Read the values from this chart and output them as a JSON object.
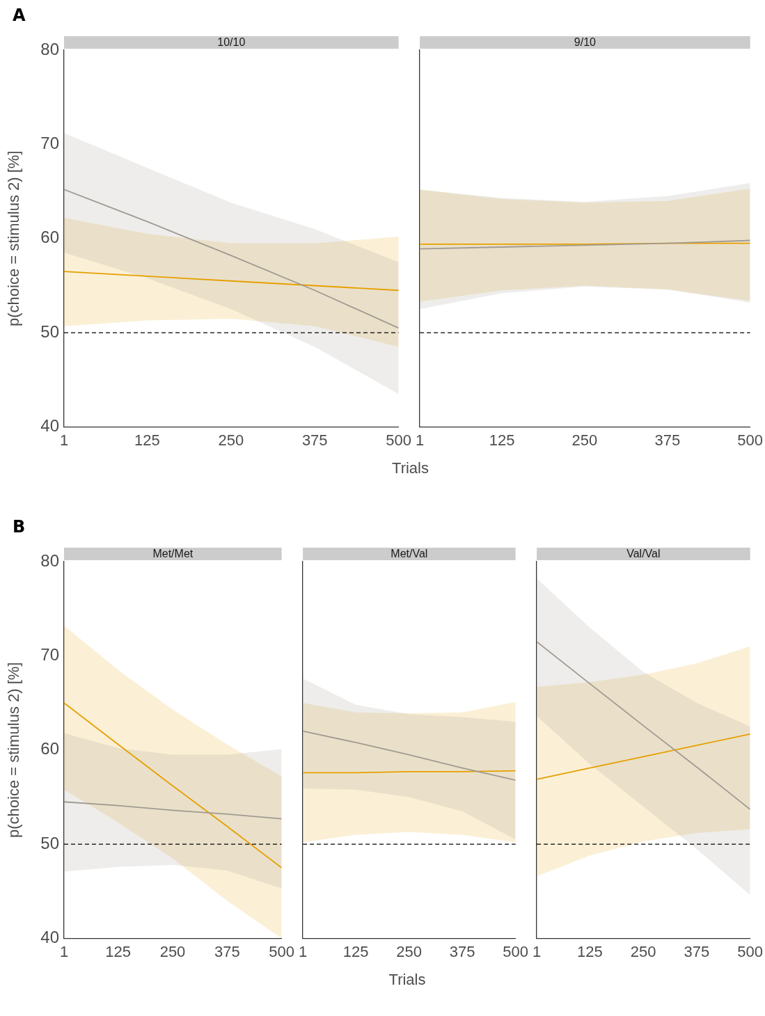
{
  "chart_data": [
    {
      "type": "line",
      "title": "10/10",
      "xlabel": "Trials",
      "ylabel": "p(choice = stimulus 2) [%]",
      "annotations": [
        "A"
      ],
      "x": [
        1,
        125,
        250,
        375,
        500
      ],
      "xlim": [
        1,
        500
      ],
      "xticks": [
        1,
        125,
        250,
        375,
        500
      ],
      "ylim": [
        40,
        80
      ],
      "yticks": [
        40,
        50,
        60,
        70,
        80
      ],
      "grid": false,
      "legend": false,
      "ref_lines": [
        {
          "axis": "y",
          "value": 50,
          "color": "#000000",
          "line_style": "dashed"
        }
      ],
      "series": [
        {
          "color": "#a09a92",
          "values": [
            65.2,
            61.8,
            58.2,
            54.5,
            50.5
          ],
          "upper": [
            71.2,
            67.5,
            63.8,
            61,
            57.5
          ],
          "lower": [
            58.5,
            55.8,
            52.5,
            48.5,
            43.5
          ]
        },
        {
          "color": "#e69f00",
          "values": [
            56.5,
            56,
            55.5,
            55,
            54.5
          ],
          "upper": [
            62.2,
            60.5,
            59.5,
            59.5,
            60.2
          ],
          "lower": [
            50.7,
            51.3,
            51.5,
            50.7,
            48.5
          ]
        }
      ]
    },
    {
      "type": "line",
      "title": "9/10",
      "x": [
        1,
        125,
        250,
        375,
        500
      ],
      "xlim": [
        1,
        500
      ],
      "xticks": [
        1,
        125,
        250,
        375,
        500
      ],
      "ylim": [
        40,
        80
      ],
      "yticks": [
        40,
        50,
        60,
        70,
        80
      ],
      "tick_labels": "x",
      "grid": false,
      "legend": false,
      "ref_lines": [
        {
          "axis": "y",
          "value": 50,
          "color": "#000000",
          "line_style": "dashed"
        }
      ],
      "series": [
        {
          "color": "#a09a92",
          "values": [
            58.9,
            59.1,
            59.3,
            59.5,
            59.8
          ],
          "upper": [
            65.2,
            64.3,
            63.9,
            64.5,
            65.9
          ],
          "lower": [
            52.5,
            54.2,
            54.9,
            54.6,
            53.2
          ]
        },
        {
          "color": "#e69f00",
          "values": [
            59.4,
            59.4,
            59.4,
            59.5,
            59.5
          ],
          "upper": [
            65.2,
            64.2,
            63.8,
            64,
            65.3
          ],
          "lower": [
            53.3,
            54.5,
            55,
            54.6,
            53.4
          ]
        }
      ]
    },
    {
      "type": "line",
      "title": "Met/Met",
      "ylabel": "p(choice = stimulus 2) [%]",
      "annotations": [
        "B"
      ],
      "x": [
        1,
        125,
        250,
        375,
        500
      ],
      "xlim": [
        1,
        500
      ],
      "xticks": [
        1,
        125,
        250,
        375,
        500
      ],
      "ylim": [
        40,
        80
      ],
      "yticks": [
        40,
        50,
        60,
        70,
        80
      ],
      "grid": false,
      "legend": false,
      "ref_lines": [
        {
          "axis": "y",
          "value": 50,
          "color": "#000000",
          "line_style": "dashed"
        }
      ],
      "series": [
        {
          "color": "#a09a92",
          "values": [
            54.5,
            54.1,
            53.6,
            53.2,
            52.7
          ],
          "upper": [
            61.8,
            60.2,
            59.5,
            59.5,
            60.1
          ],
          "lower": [
            47.1,
            47.6,
            47.8,
            47.2,
            45.3
          ]
        },
        {
          "color": "#e69f00",
          "values": [
            65,
            60.6,
            56.2,
            51.9,
            47.5
          ],
          "upper": [
            73.2,
            68.5,
            64.3,
            60.6,
            57.2
          ],
          "lower": [
            55.8,
            52.3,
            48.5,
            44,
            40
          ]
        }
      ]
    },
    {
      "type": "line",
      "title": "Met/Val",
      "xlabel": "Trials",
      "x": [
        1,
        125,
        250,
        375,
        500
      ],
      "xlim": [
        1,
        500
      ],
      "xticks": [
        1,
        125,
        250,
        375,
        500
      ],
      "ylim": [
        40,
        80
      ],
      "yticks": [
        40,
        50,
        60,
        70,
        80
      ],
      "tick_labels": "x",
      "grid": false,
      "legend": false,
      "ref_lines": [
        {
          "axis": "y",
          "value": 50,
          "color": "#000000",
          "line_style": "dashed"
        }
      ],
      "series": [
        {
          "color": "#a09a92",
          "values": [
            62,
            60.8,
            59.5,
            58.1,
            56.8
          ],
          "upper": [
            67.6,
            64.8,
            63.8,
            63.5,
            63
          ],
          "lower": [
            55.9,
            55.8,
            55,
            53.5,
            50.5
          ]
        },
        {
          "color": "#e69f00",
          "values": [
            57.6,
            57.6,
            57.7,
            57.7,
            57.8
          ],
          "upper": [
            65,
            64,
            63.9,
            64,
            65.1
          ],
          "lower": [
            50.2,
            51,
            51.3,
            51,
            50.2
          ]
        }
      ]
    },
    {
      "type": "line",
      "title": "Val/Val",
      "x": [
        1,
        125,
        250,
        375,
        500
      ],
      "xlim": [
        1,
        500
      ],
      "xticks": [
        1,
        125,
        250,
        375,
        500
      ],
      "ylim": [
        40,
        80
      ],
      "yticks": [
        40,
        50,
        60,
        70,
        80
      ],
      "tick_labels": "x",
      "grid": false,
      "legend": false,
      "ref_lines": [
        {
          "axis": "y",
          "value": 50,
          "color": "#000000",
          "line_style": "dashed"
        }
      ],
      "series": [
        {
          "color": "#a09a92",
          "values": [
            71.5,
            67.05,
            62.6,
            58.2,
            53.7
          ],
          "upper": [
            78.2,
            73,
            68.3,
            65,
            62.5
          ],
          "lower": [
            63.6,
            58.5,
            54,
            49.5,
            44.6
          ]
        },
        {
          "color": "#e69f00",
          "values": [
            56.9,
            58.1,
            59.3,
            60.5,
            61.7
          ],
          "upper": [
            66.7,
            67.2,
            68,
            69.2,
            71
          ],
          "lower": [
            46.6,
            48.8,
            50.3,
            51.2,
            51.6
          ]
        }
      ]
    }
  ]
}
